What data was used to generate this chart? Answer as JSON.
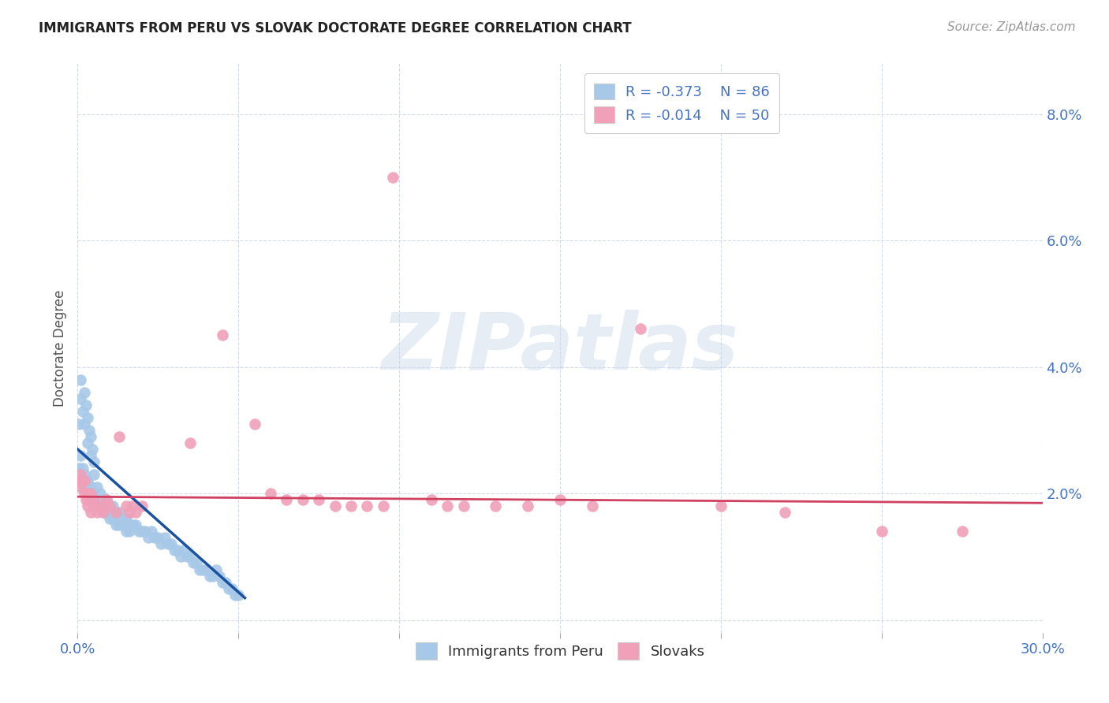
{
  "title": "IMMIGRANTS FROM PERU VS SLOVAK DOCTORATE DEGREE CORRELATION CHART",
  "source": "Source: ZipAtlas.com",
  "ylabel": "Doctorate Degree",
  "x_range": [
    0.0,
    0.3
  ],
  "y_range": [
    -0.002,
    0.088
  ],
  "legend1_r": "-0.373",
  "legend1_n": "86",
  "legend2_r": "-0.014",
  "legend2_n": "50",
  "blue_color": "#a8c8e8",
  "pink_color": "#f0a0b8",
  "trendline_blue_color": "#1a52a0",
  "trendline_pink_color": "#d04060",
  "watermark_text": "ZIPatlas",
  "peru_points": [
    [
      0.0005,
      0.031
    ],
    [
      0.001,
      0.038
    ],
    [
      0.001,
      0.035
    ],
    [
      0.0015,
      0.033
    ],
    [
      0.002,
      0.036
    ],
    [
      0.002,
      0.031
    ],
    [
      0.0025,
      0.034
    ],
    [
      0.003,
      0.028
    ],
    [
      0.003,
      0.032
    ],
    [
      0.0035,
      0.03
    ],
    [
      0.004,
      0.029
    ],
    [
      0.004,
      0.026
    ],
    [
      0.0045,
      0.027
    ],
    [
      0.005,
      0.025
    ],
    [
      0.005,
      0.023
    ],
    [
      0.0005,
      0.024
    ],
    [
      0.001,
      0.026
    ],
    [
      0.001,
      0.022
    ],
    [
      0.0015,
      0.024
    ],
    [
      0.002,
      0.023
    ],
    [
      0.002,
      0.021
    ],
    [
      0.0025,
      0.022
    ],
    [
      0.003,
      0.022
    ],
    [
      0.003,
      0.02
    ],
    [
      0.0035,
      0.021
    ],
    [
      0.004,
      0.021
    ],
    [
      0.004,
      0.02
    ],
    [
      0.0045,
      0.02
    ],
    [
      0.005,
      0.019
    ],
    [
      0.005,
      0.018
    ],
    [
      0.006,
      0.021
    ],
    [
      0.006,
      0.019
    ],
    [
      0.007,
      0.02
    ],
    [
      0.007,
      0.018
    ],
    [
      0.008,
      0.019
    ],
    [
      0.008,
      0.017
    ],
    [
      0.009,
      0.019
    ],
    [
      0.009,
      0.017
    ],
    [
      0.01,
      0.018
    ],
    [
      0.01,
      0.016
    ],
    [
      0.011,
      0.018
    ],
    [
      0.011,
      0.016
    ],
    [
      0.012,
      0.017
    ],
    [
      0.012,
      0.015
    ],
    [
      0.013,
      0.017
    ],
    [
      0.013,
      0.015
    ],
    [
      0.014,
      0.016
    ],
    [
      0.014,
      0.015
    ],
    [
      0.015,
      0.016
    ],
    [
      0.015,
      0.014
    ],
    [
      0.016,
      0.015
    ],
    [
      0.016,
      0.014
    ],
    [
      0.017,
      0.015
    ],
    [
      0.018,
      0.015
    ],
    [
      0.019,
      0.014
    ],
    [
      0.02,
      0.014
    ],
    [
      0.021,
      0.014
    ],
    [
      0.022,
      0.013
    ],
    [
      0.023,
      0.014
    ],
    [
      0.024,
      0.013
    ],
    [
      0.025,
      0.013
    ],
    [
      0.026,
      0.012
    ],
    [
      0.027,
      0.013
    ],
    [
      0.028,
      0.012
    ],
    [
      0.029,
      0.012
    ],
    [
      0.03,
      0.011
    ],
    [
      0.031,
      0.011
    ],
    [
      0.032,
      0.01
    ],
    [
      0.033,
      0.011
    ],
    [
      0.034,
      0.01
    ],
    [
      0.035,
      0.01
    ],
    [
      0.036,
      0.009
    ],
    [
      0.037,
      0.009
    ],
    [
      0.038,
      0.008
    ],
    [
      0.039,
      0.008
    ],
    [
      0.04,
      0.008
    ],
    [
      0.041,
      0.007
    ],
    [
      0.042,
      0.007
    ],
    [
      0.043,
      0.008
    ],
    [
      0.044,
      0.007
    ],
    [
      0.045,
      0.006
    ],
    [
      0.046,
      0.006
    ],
    [
      0.047,
      0.005
    ],
    [
      0.048,
      0.005
    ],
    [
      0.049,
      0.004
    ],
    [
      0.05,
      0.004
    ]
  ],
  "slovak_points": [
    [
      0.0005,
      0.022
    ],
    [
      0.001,
      0.023
    ],
    [
      0.001,
      0.021
    ],
    [
      0.0015,
      0.022
    ],
    [
      0.002,
      0.02
    ],
    [
      0.002,
      0.022
    ],
    [
      0.0025,
      0.019
    ],
    [
      0.003,
      0.02
    ],
    [
      0.003,
      0.018
    ],
    [
      0.0035,
      0.019
    ],
    [
      0.004,
      0.02
    ],
    [
      0.004,
      0.017
    ],
    [
      0.005,
      0.019
    ],
    [
      0.005,
      0.018
    ],
    [
      0.006,
      0.017
    ],
    [
      0.007,
      0.018
    ],
    [
      0.008,
      0.017
    ],
    [
      0.009,
      0.019
    ],
    [
      0.01,
      0.018
    ],
    [
      0.012,
      0.017
    ],
    [
      0.013,
      0.029
    ],
    [
      0.015,
      0.018
    ],
    [
      0.016,
      0.017
    ],
    [
      0.017,
      0.018
    ],
    [
      0.018,
      0.017
    ],
    [
      0.02,
      0.018
    ],
    [
      0.098,
      0.07
    ],
    [
      0.045,
      0.045
    ],
    [
      0.035,
      0.028
    ],
    [
      0.055,
      0.031
    ],
    [
      0.06,
      0.02
    ],
    [
      0.065,
      0.019
    ],
    [
      0.07,
      0.019
    ],
    [
      0.075,
      0.019
    ],
    [
      0.08,
      0.018
    ],
    [
      0.085,
      0.018
    ],
    [
      0.09,
      0.018
    ],
    [
      0.095,
      0.018
    ],
    [
      0.11,
      0.019
    ],
    [
      0.115,
      0.018
    ],
    [
      0.12,
      0.018
    ],
    [
      0.13,
      0.018
    ],
    [
      0.14,
      0.018
    ],
    [
      0.15,
      0.019
    ],
    [
      0.16,
      0.018
    ],
    [
      0.175,
      0.046
    ],
    [
      0.2,
      0.018
    ],
    [
      0.22,
      0.017
    ],
    [
      0.25,
      0.014
    ],
    [
      0.275,
      0.014
    ]
  ],
  "peru_trend_x": [
    0.0,
    0.052
  ],
  "peru_trend_y": [
    0.027,
    0.0035
  ],
  "slovak_trend_x": [
    0.0,
    0.3
  ],
  "slovak_trend_y": [
    0.0195,
    0.0185
  ]
}
